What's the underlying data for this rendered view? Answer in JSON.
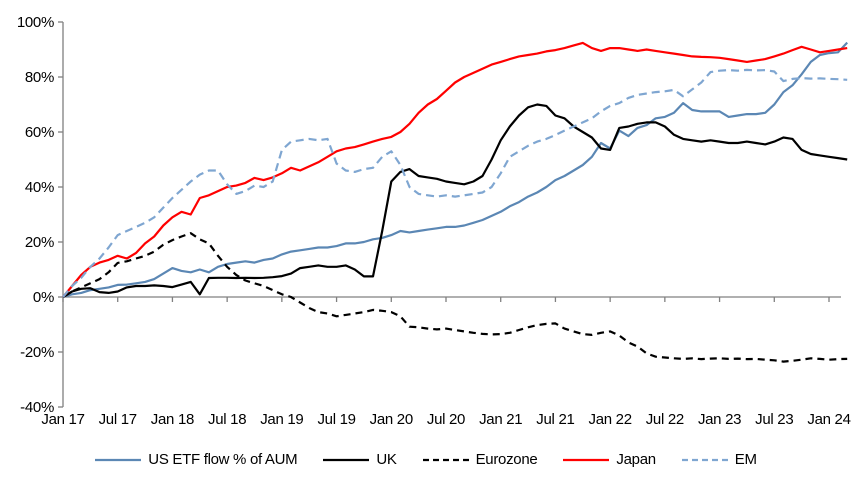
{
  "chart_data": {
    "type": "line",
    "title": "",
    "xlabel": "",
    "ylabel": "",
    "grid": false,
    "legend_position": "bottom",
    "x_unit": "months since Jan 2017",
    "x_tick_positions": [
      0,
      6,
      12,
      18,
      24,
      30,
      36,
      42,
      48,
      54,
      60,
      66,
      72,
      78,
      84
    ],
    "x_tick_labels": [
      "Jan 17",
      "Jul 17",
      "Jan 18",
      "Jul 18",
      "Jan 19",
      "Jul 19",
      "Jan 20",
      "Jul 20",
      "Jan 21",
      "Jul 21",
      "Jan 22",
      "Jul 22",
      "Jan 23",
      "Jul 23",
      "Jan 24"
    ],
    "ylim": [
      -40,
      100
    ],
    "y_tick_values": [
      100,
      80,
      60,
      40,
      20,
      0,
      -20,
      -40
    ],
    "y_tick_labels": [
      "100%",
      "80%",
      "60%",
      "40%",
      "20%",
      "0%",
      "-20%",
      "-40%"
    ],
    "series": [
      {
        "name": "US ETF flow % of AUM",
        "color": "#5b87b4",
        "dash": "",
        "values": [
          0,
          1,
          1.5,
          2.5,
          3,
          3.5,
          4.4,
          4.5,
          5,
          5.5,
          6.5,
          8.5,
          10.5,
          9.5,
          9,
          10,
          9,
          11,
          12,
          12.5,
          13,
          12.5,
          13.5,
          14,
          15.5,
          16.5,
          17,
          17.5,
          18,
          18,
          18.5,
          19.5,
          19.5,
          20,
          21,
          21.5,
          22.5,
          24,
          23.5,
          24,
          24.5,
          25,
          25.5,
          25.5,
          26,
          27,
          28,
          29.5,
          31,
          33,
          34.5,
          36.5,
          38,
          40,
          42.5,
          44,
          46,
          48,
          51,
          56,
          54,
          60.5,
          58.5,
          61.5,
          62.5,
          65,
          65.5,
          67,
          70.5,
          68,
          67.5,
          67.5,
          67.5,
          65.5,
          66,
          66.5,
          66.5,
          67,
          70,
          74.5,
          77,
          81,
          85.5,
          88,
          88.7,
          89,
          92.5
        ]
      },
      {
        "name": "UK",
        "color": "#000000",
        "dash": "",
        "values": [
          0,
          2,
          3,
          3.2,
          1.8,
          1.5,
          2,
          3.5,
          4,
          4,
          4.2,
          4,
          3.6,
          4.5,
          5.5,
          1,
          6.9,
          7,
          7,
          6.9,
          7,
          6.9,
          7,
          7.2,
          7.6,
          8.5,
          10.5,
          11,
          11.5,
          11,
          11,
          11.5,
          10,
          7.5,
          7.5,
          24,
          42,
          45.5,
          46.5,
          44,
          43.5,
          43,
          42,
          41.5,
          41,
          42,
          44,
          50,
          57,
          62,
          66,
          69,
          70,
          69.5,
          66,
          65,
          62,
          60,
          58,
          54,
          53.5,
          61.5,
          62,
          63,
          63.5,
          63.5,
          62,
          59,
          57.5,
          57,
          56.5,
          57,
          56.5,
          56,
          56,
          56.5,
          56,
          55.5,
          56.5,
          58,
          57.5,
          53.5,
          52,
          51.5,
          51,
          50.5,
          50
        ]
      },
      {
        "name": "Eurozone",
        "color": "#000000",
        "dash": "7 5",
        "values": [
          0,
          2,
          3.5,
          5,
          6.5,
          9,
          12.4,
          13,
          14,
          15,
          16.5,
          19,
          20.7,
          22,
          23.2,
          21,
          19.5,
          15,
          11,
          8,
          6,
          5,
          4,
          2.5,
          1,
          0,
          -2,
          -4,
          -5.5,
          -6,
          -7,
          -6.5,
          -6,
          -5.5,
          -4.7,
          -5,
          -5.5,
          -7,
          -10.8,
          -11,
          -11.5,
          -11.8,
          -11.5,
          -12,
          -12.5,
          -13,
          -13.4,
          -13.6,
          -13.5,
          -13,
          -12,
          -11,
          -10.2,
          -9.8,
          -9.6,
          -11.5,
          -12.5,
          -13.5,
          -13.8,
          -13,
          -12.5,
          -14,
          -16.5,
          -18,
          -20.5,
          -21.7,
          -22,
          -22.3,
          -22.5,
          -22.3,
          -22.6,
          -22.4,
          -22.3,
          -22.5,
          -22.4,
          -22.6,
          -22.5,
          -22.8,
          -23,
          -23.5,
          -23.2,
          -22.8,
          -22.3,
          -22.5,
          -22.8,
          -22.6,
          -22.5
        ]
      },
      {
        "name": "Japan",
        "color": "#ff0000",
        "dash": "",
        "values": [
          0,
          4,
          8,
          11,
          12.5,
          13.5,
          15,
          14,
          16,
          19.5,
          22,
          26,
          29,
          31,
          30,
          36,
          37,
          38.5,
          40,
          40.5,
          41.5,
          43.3,
          42.5,
          43.5,
          45,
          47,
          46,
          47.5,
          49,
          51,
          53,
          54,
          54.5,
          55.5,
          56.5,
          57.5,
          58.2,
          60,
          63,
          67,
          70,
          72,
          75,
          78,
          80,
          81.5,
          83,
          84.5,
          85.5,
          86.5,
          87.5,
          88,
          88.5,
          89.3,
          89.8,
          90.5,
          91.5,
          92.4,
          90.5,
          89.5,
          90.5,
          90.5,
          90,
          89.5,
          90,
          89.5,
          89,
          88.5,
          88,
          87.5,
          87.3,
          87.2,
          87,
          86.5,
          86,
          85.5,
          86,
          86.5,
          87.5,
          88.5,
          89.8,
          91,
          90,
          89,
          89.5,
          90,
          90.5
        ]
      },
      {
        "name": "EM",
        "color": "#7fa6d1",
        "dash": "8 5",
        "values": [
          0,
          4,
          7,
          11,
          14,
          18,
          22.5,
          24,
          25.5,
          27,
          29,
          32.5,
          36,
          39,
          42,
          44.5,
          46,
          46,
          41,
          37.5,
          38.5,
          40.5,
          40,
          42,
          53.5,
          56.5,
          57,
          57.5,
          57,
          57.5,
          48.5,
          46,
          45.5,
          46.5,
          47,
          51,
          53,
          48,
          40,
          37.5,
          37,
          36.5,
          37,
          36.5,
          37,
          37.5,
          38,
          40,
          45,
          51,
          53,
          55,
          56.5,
          57.5,
          58.9,
          60.5,
          62,
          63.5,
          65,
          67.5,
          69.5,
          70.5,
          72.4,
          73.5,
          74,
          74.5,
          74.8,
          75.3,
          73,
          75.5,
          78,
          81.8,
          82.3,
          82.5,
          82.3,
          82.6,
          82.4,
          82.5,
          82,
          78.5,
          79.3,
          79.6,
          79.4,
          79.5,
          79.3,
          79.2,
          79
        ]
      }
    ],
    "axis_color": "#808080",
    "text_color": "#000000"
  },
  "legend": {
    "items": [
      "US ETF flow % of AUM",
      "UK",
      "Eurozone",
      "Japan",
      "EM"
    ]
  }
}
